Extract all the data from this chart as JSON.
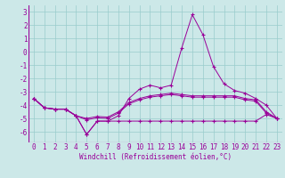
{
  "x": [
    0,
    1,
    2,
    3,
    4,
    5,
    6,
    7,
    8,
    9,
    10,
    11,
    12,
    13,
    14,
    15,
    16,
    17,
    18,
    19,
    20,
    21,
    22,
    23
  ],
  "line_top": [
    -3.5,
    -4.2,
    -4.3,
    -4.3,
    -4.8,
    -5.0,
    -4.85,
    -4.9,
    -4.5,
    -3.8,
    -3.5,
    -3.3,
    -3.2,
    -3.1,
    -3.2,
    -3.3,
    -3.3,
    -3.3,
    -3.3,
    -3.3,
    -3.5,
    -3.6,
    -4.5,
    -5.0
  ],
  "line_mid": [
    -3.5,
    -4.2,
    -4.3,
    -4.3,
    -4.8,
    -5.1,
    -4.95,
    -5.0,
    -4.6,
    -3.9,
    -3.6,
    -3.4,
    -3.3,
    -3.2,
    -3.3,
    -3.4,
    -3.4,
    -3.4,
    -3.4,
    -3.4,
    -3.6,
    -3.7,
    -4.6,
    -5.0
  ],
  "line_bot": [
    -3.5,
    -4.2,
    -4.3,
    -4.3,
    -4.8,
    -6.2,
    -5.2,
    -5.2,
    -5.2,
    -5.2,
    -5.2,
    -5.2,
    -5.2,
    -5.2,
    -5.2,
    -5.2,
    -5.2,
    -5.2,
    -5.2,
    -5.2,
    -5.2,
    -5.2,
    -4.7,
    -5.0
  ],
  "line_main": [
    -3.5,
    -4.2,
    -4.3,
    -4.3,
    -4.8,
    -6.2,
    -5.2,
    -5.2,
    -4.8,
    -3.5,
    -2.8,
    -2.5,
    -2.7,
    -2.5,
    0.3,
    2.8,
    1.3,
    -1.1,
    -2.4,
    -2.9,
    -3.1,
    -3.5,
    -4.0,
    -5.0
  ],
  "bg_color": "#cce8e8",
  "grid_color": "#99cccc",
  "line_color": "#990099",
  "xlabel": "Windchill (Refroidissement éolien,°C)",
  "ylim": [
    -6.8,
    3.5
  ],
  "xlim": [
    -0.5,
    23.5
  ],
  "yticks": [
    3,
    2,
    1,
    0,
    -1,
    -2,
    -3,
    -4,
    -5,
    -6
  ],
  "xticks": [
    0,
    1,
    2,
    3,
    4,
    5,
    6,
    7,
    8,
    9,
    10,
    11,
    12,
    13,
    14,
    15,
    16,
    17,
    18,
    19,
    20,
    21,
    22,
    23
  ],
  "xlabel_fontsize": 5.5,
  "tick_fontsize": 5.5
}
